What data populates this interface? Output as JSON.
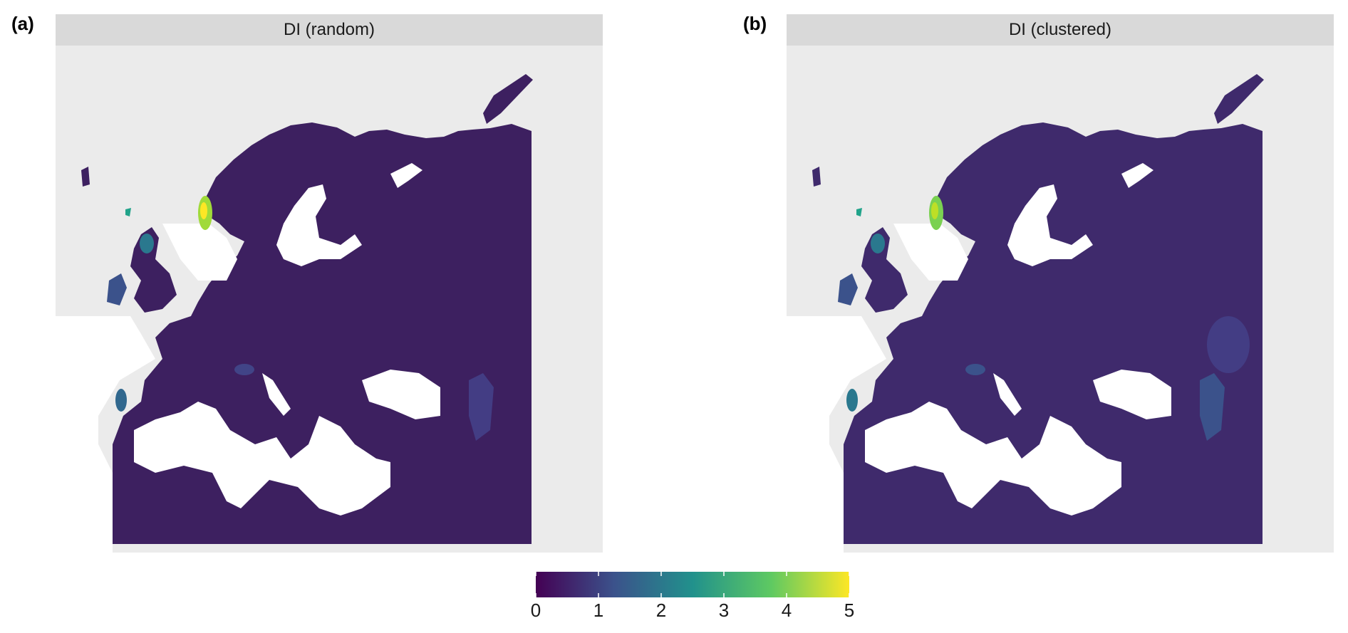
{
  "panels": [
    {
      "tag": "(a)",
      "title": "DI (random)"
    },
    {
      "tag": "(b)",
      "title": "DI (clustered)"
    }
  ],
  "legend": {
    "ticks": [
      "0",
      "1",
      "2",
      "3",
      "4",
      "5"
    ],
    "min": 0,
    "max": 5,
    "palette": [
      "#440154",
      "#3b528b",
      "#21918c",
      "#5ec962",
      "#fde725"
    ]
  },
  "colors": {
    "land_base": "#3b1f5e",
    "water": "#ffffff",
    "panel_bg": "#ebebeb",
    "strip_bg": "#d9d9d9"
  }
}
